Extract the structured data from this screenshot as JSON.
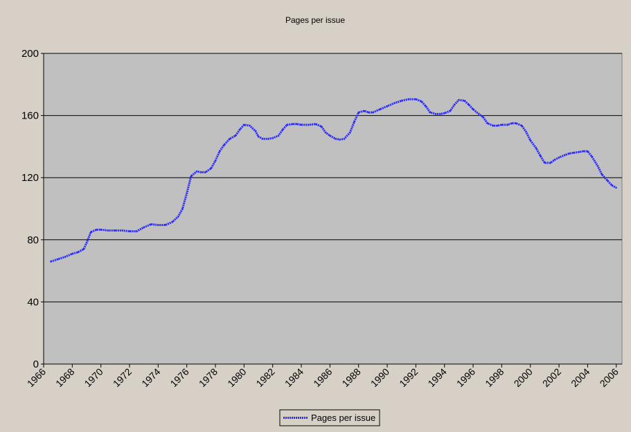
{
  "chart_data": {
    "type": "line",
    "title": "Pages per issue",
    "xlabel": "",
    "ylabel": "",
    "xlim": [
      1966,
      2006.4
    ],
    "ylim": [
      0,
      200
    ],
    "y_ticks": [
      0,
      40,
      80,
      120,
      160,
      200
    ],
    "x_ticks": [
      1966,
      1968,
      1970,
      1972,
      1974,
      1976,
      1978,
      1980,
      1982,
      1984,
      1986,
      1988,
      1990,
      1992,
      1994,
      1996,
      1998,
      2000,
      2002,
      2004,
      2006
    ],
    "grid": true,
    "legend_position": "bottom-center",
    "colors": {
      "line": "#2a2aff",
      "plot_bg": "#c0c0c0",
      "page_bg": "#d6d0c7",
      "grid": "#000000"
    },
    "series": [
      {
        "name": "Pages per issue",
        "x": [
          1966.5,
          1967.0,
          1967.5,
          1968.0,
          1968.4,
          1968.8,
          1969.0,
          1969.3,
          1969.7,
          1970.0,
          1970.5,
          1971.0,
          1971.5,
          1972.0,
          1972.5,
          1973.0,
          1973.5,
          1974.0,
          1974.5,
          1975.0,
          1975.4,
          1975.7,
          1976.0,
          1976.3,
          1976.7,
          1977.0,
          1977.3,
          1977.7,
          1978.0,
          1978.3,
          1978.6,
          1979.0,
          1979.4,
          1979.7,
          1980.0,
          1980.4,
          1980.8,
          1981.0,
          1981.3,
          1981.7,
          1982.0,
          1982.4,
          1982.7,
          1983.0,
          1983.4,
          1983.7,
          1984.0,
          1984.5,
          1985.0,
          1985.4,
          1985.7,
          1986.0,
          1986.4,
          1986.7,
          1987.0,
          1987.4,
          1987.7,
          1988.0,
          1988.4,
          1988.7,
          1989.0,
          1989.5,
          1990.0,
          1990.5,
          1991.0,
          1991.5,
          1992.0,
          1992.4,
          1992.7,
          1993.0,
          1993.4,
          1993.7,
          1994.0,
          1994.4,
          1994.7,
          1995.0,
          1995.4,
          1995.7,
          1996.0,
          1996.4,
          1996.7,
          1997.0,
          1997.4,
          1997.7,
          1998.0,
          1998.4,
          1998.7,
          1999.0,
          1999.4,
          1999.7,
          2000.0,
          2000.4,
          2000.7,
          2001.0,
          2001.4,
          2001.7,
          2002.0,
          2002.4,
          2002.7,
          2003.0,
          2003.4,
          2003.7,
          2004.0,
          2004.3,
          2004.7,
          2005.0,
          2005.4,
          2005.7,
          2006.0
        ],
        "values": [
          66,
          67.5,
          69,
          71,
          72,
          74,
          78,
          85,
          86.5,
          86.5,
          86,
          86,
          86,
          85.5,
          85.5,
          88,
          90,
          89.5,
          89.5,
          91.5,
          95,
          100,
          110,
          121,
          124,
          123.5,
          123.5,
          126,
          131,
          137,
          141,
          145,
          147,
          151,
          154,
          153.5,
          150,
          146.5,
          145,
          145,
          145.5,
          147,
          151,
          154,
          154.5,
          154.5,
          154,
          154,
          154.5,
          153,
          149,
          147,
          145,
          144.5,
          145,
          149,
          156,
          162,
          163,
          162,
          162,
          164,
          166,
          168,
          169.5,
          170.5,
          170.5,
          169,
          166,
          162,
          161,
          161,
          161.5,
          163,
          167,
          170,
          169.5,
          167,
          164,
          161,
          159,
          155,
          153.5,
          153.5,
          154,
          154,
          155,
          155,
          153.5,
          149.5,
          144,
          139,
          134,
          129.5,
          129.5,
          131.5,
          133,
          134.5,
          135.5,
          136,
          136.5,
          137,
          137,
          133.5,
          127.5,
          122,
          118,
          115,
          113.5
        ]
      }
    ]
  }
}
